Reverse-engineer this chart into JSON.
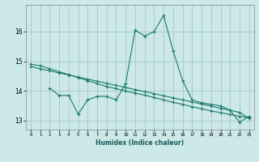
{
  "title": "",
  "xlabel": "Humidex (Indice chaleur)",
  "ylabel": "",
  "bg_color": "#cce8e8",
  "grid_color": "#aacccc",
  "line_color": "#1a7a6e",
  "xlim": [
    -0.5,
    23.5
  ],
  "ylim": [
    12.7,
    16.9
  ],
  "xticks": [
    0,
    1,
    2,
    3,
    4,
    5,
    6,
    7,
    8,
    9,
    10,
    11,
    12,
    13,
    14,
    15,
    16,
    17,
    18,
    19,
    20,
    21,
    22,
    23
  ],
  "yticks": [
    13,
    14,
    15,
    16
  ],
  "line1_x": [
    0,
    1,
    2,
    3,
    4,
    5,
    6,
    7,
    8,
    9,
    10,
    11,
    12,
    13,
    14,
    15,
    16,
    17,
    18,
    19,
    20,
    21,
    22,
    23
  ],
  "line1_y": [
    14.9,
    14.85,
    14.75,
    14.65,
    14.55,
    14.45,
    14.35,
    14.25,
    14.15,
    14.08,
    14.0,
    13.93,
    13.86,
    13.78,
    13.7,
    13.62,
    13.55,
    13.47,
    13.4,
    13.33,
    13.27,
    13.21,
    13.15,
    13.1
  ],
  "line2_x": [
    0,
    1,
    2,
    3,
    4,
    5,
    6,
    7,
    8,
    9,
    10,
    11,
    12,
    13,
    14,
    15,
    16,
    17,
    18,
    19,
    20,
    21,
    22,
    23
  ],
  "line2_y": [
    14.82,
    14.75,
    14.68,
    14.61,
    14.54,
    14.47,
    14.4,
    14.33,
    14.26,
    14.19,
    14.12,
    14.05,
    13.98,
    13.91,
    13.84,
    13.77,
    13.7,
    13.63,
    13.56,
    13.49,
    13.42,
    13.35,
    13.28,
    13.08
  ],
  "line3_x": [
    2,
    3,
    4,
    5,
    6,
    7,
    8,
    9,
    10,
    11,
    12,
    13,
    14,
    15,
    16,
    17,
    18,
    19,
    20,
    21,
    22,
    23
  ],
  "line3_y": [
    14.1,
    13.85,
    13.85,
    13.22,
    13.7,
    13.82,
    13.82,
    13.7,
    14.25,
    16.05,
    15.85,
    16.0,
    16.55,
    15.35,
    14.35,
    13.7,
    13.6,
    13.55,
    13.5,
    13.35,
    12.95,
    13.15
  ]
}
